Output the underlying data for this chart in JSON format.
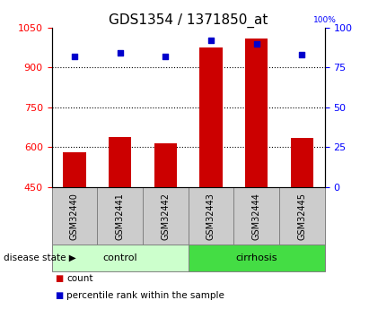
{
  "title": "GDS1354 / 1371850_at",
  "samples": [
    "GSM32440",
    "GSM32441",
    "GSM32442",
    "GSM32443",
    "GSM32444",
    "GSM32445"
  ],
  "bar_values": [
    580,
    640,
    615,
    975,
    1010,
    635
  ],
  "percentile_values": [
    82,
    84,
    82,
    92,
    90,
    83
  ],
  "bar_bottom": 450,
  "ylim_left": [
    450,
    1050
  ],
  "ylim_right": [
    0,
    100
  ],
  "yticks_left": [
    450,
    600,
    750,
    900,
    1050
  ],
  "yticks_right": [
    0,
    25,
    50,
    75,
    100
  ],
  "bar_color": "#cc0000",
  "dot_color": "#0000cc",
  "grid_color": "#000000",
  "sample_box_color": "#cccccc",
  "groups": [
    {
      "label": "control",
      "indices": [
        0,
        1,
        2
      ],
      "color": "#ccffcc"
    },
    {
      "label": "cirrhosis",
      "indices": [
        3,
        4,
        5
      ],
      "color": "#44dd44"
    }
  ],
  "disease_label": "disease state",
  "legend_items": [
    {
      "label": "count",
      "color": "#cc0000",
      "marker": "s"
    },
    {
      "label": "percentile rank within the sample",
      "color": "#0000cc",
      "marker": "s"
    }
  ],
  "bar_width": 0.5,
  "tick_fontsize": 8,
  "title_fontsize": 11,
  "sample_fontsize": 7,
  "group_fontsize": 8,
  "legend_fontsize": 7.5
}
